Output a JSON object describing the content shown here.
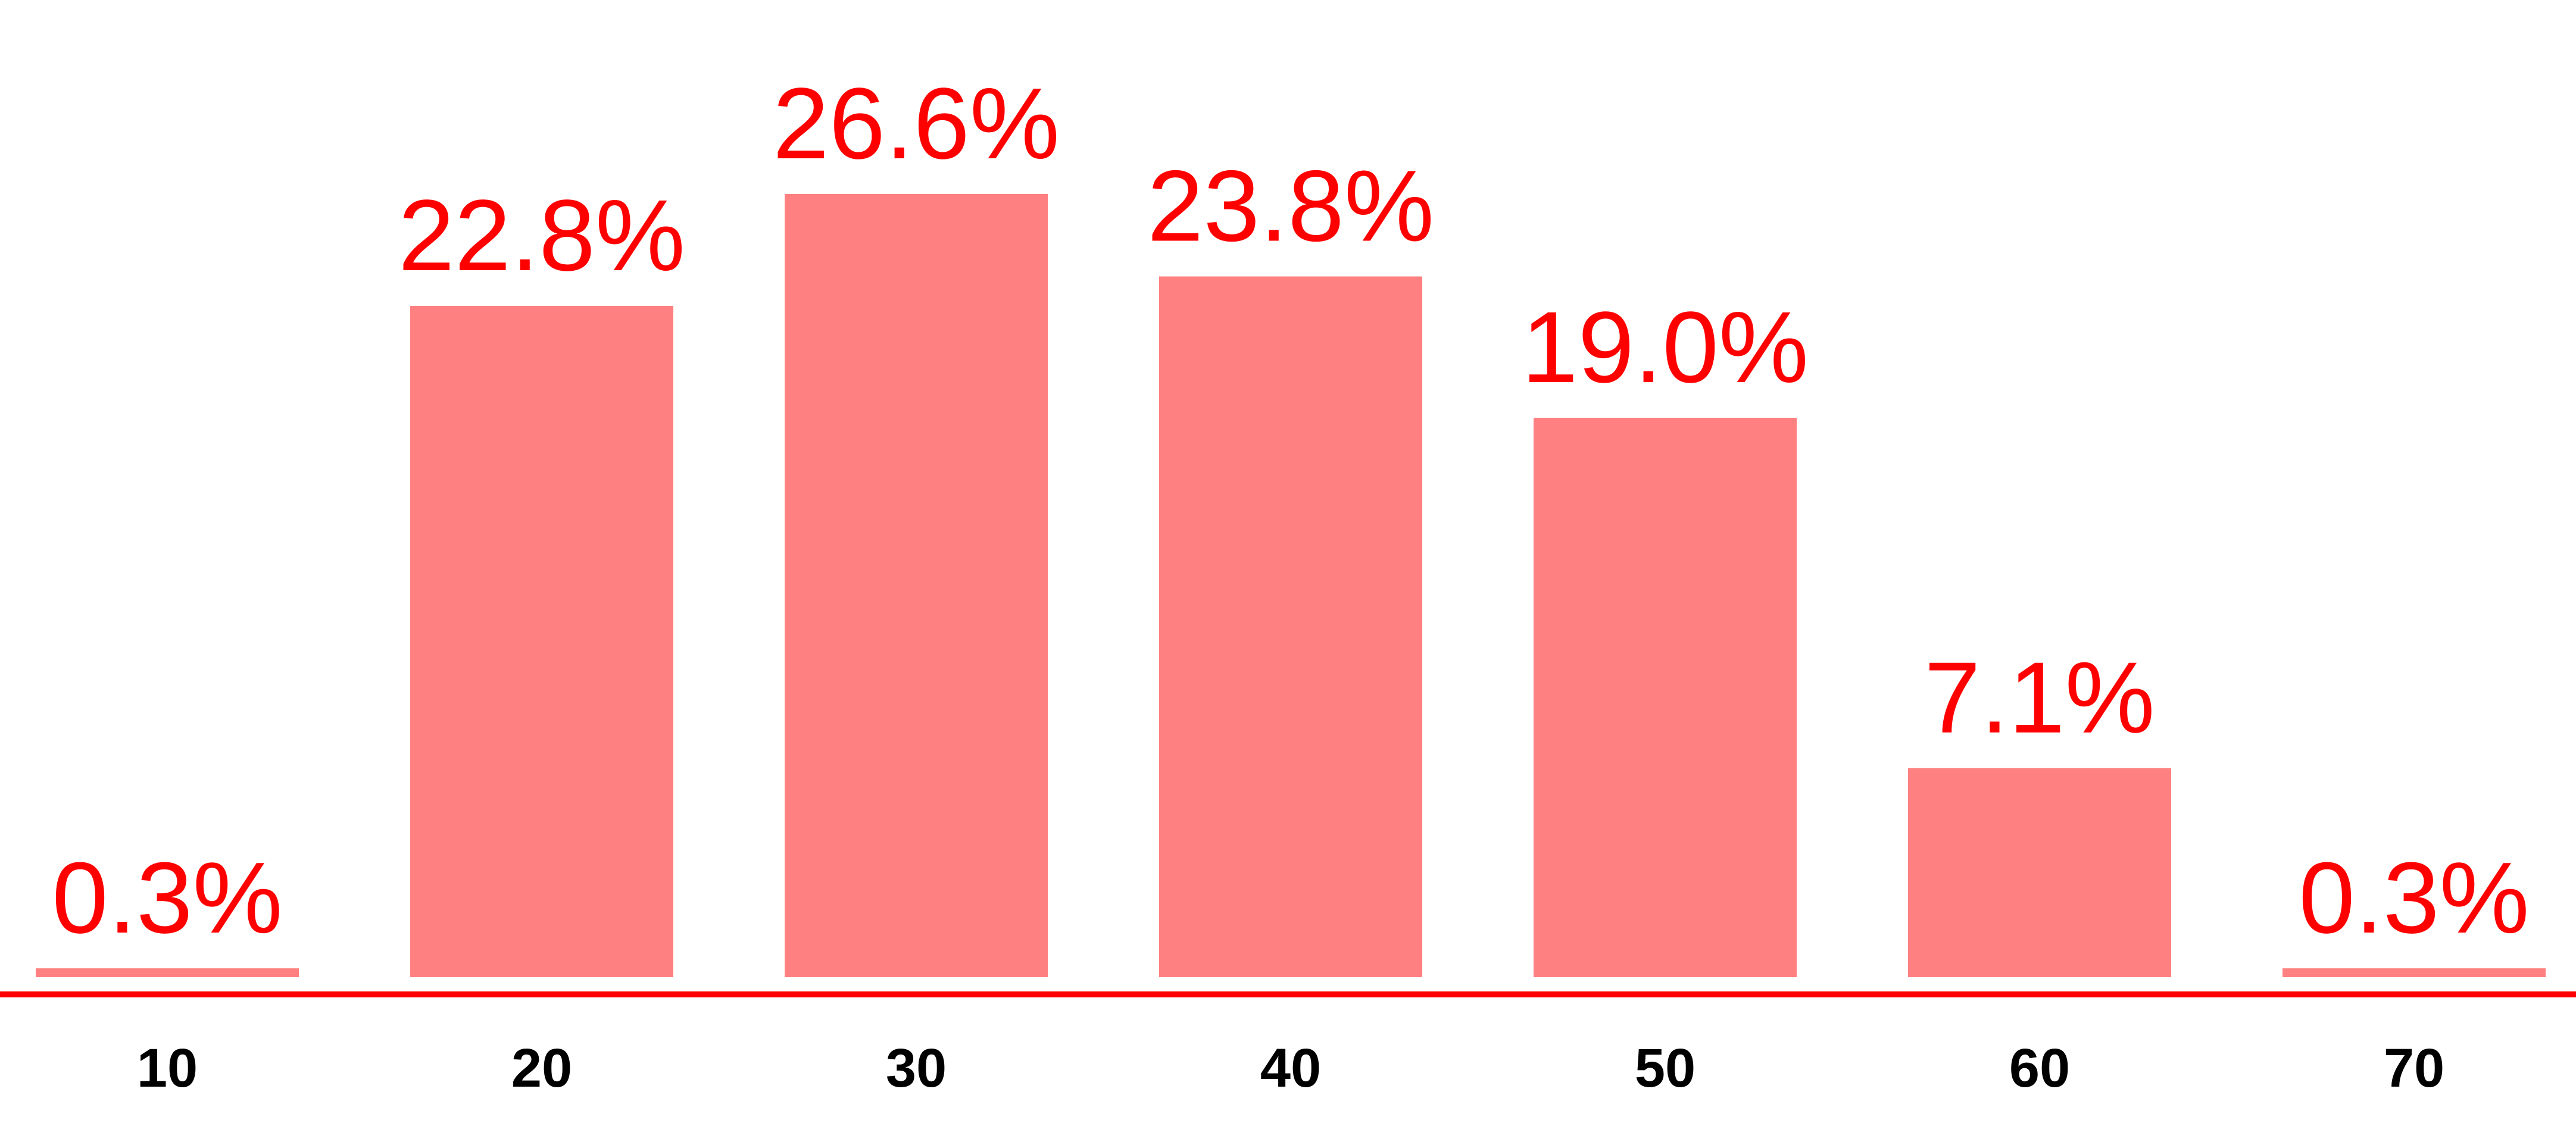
{
  "chart_data": {
    "type": "bar",
    "categories": [
      "10",
      "20",
      "30",
      "40",
      "50",
      "60",
      "70"
    ],
    "values": [
      0.3,
      22.8,
      26.6,
      23.8,
      19.0,
      7.1,
      0.3
    ],
    "value_labels": [
      "0.3%",
      "22.8%",
      "26.6%",
      "23.8%",
      "19.0%",
      "7.1%",
      "0.3%"
    ],
    "color": "#ff8080",
    "label_color": "#ff0000"
  }
}
